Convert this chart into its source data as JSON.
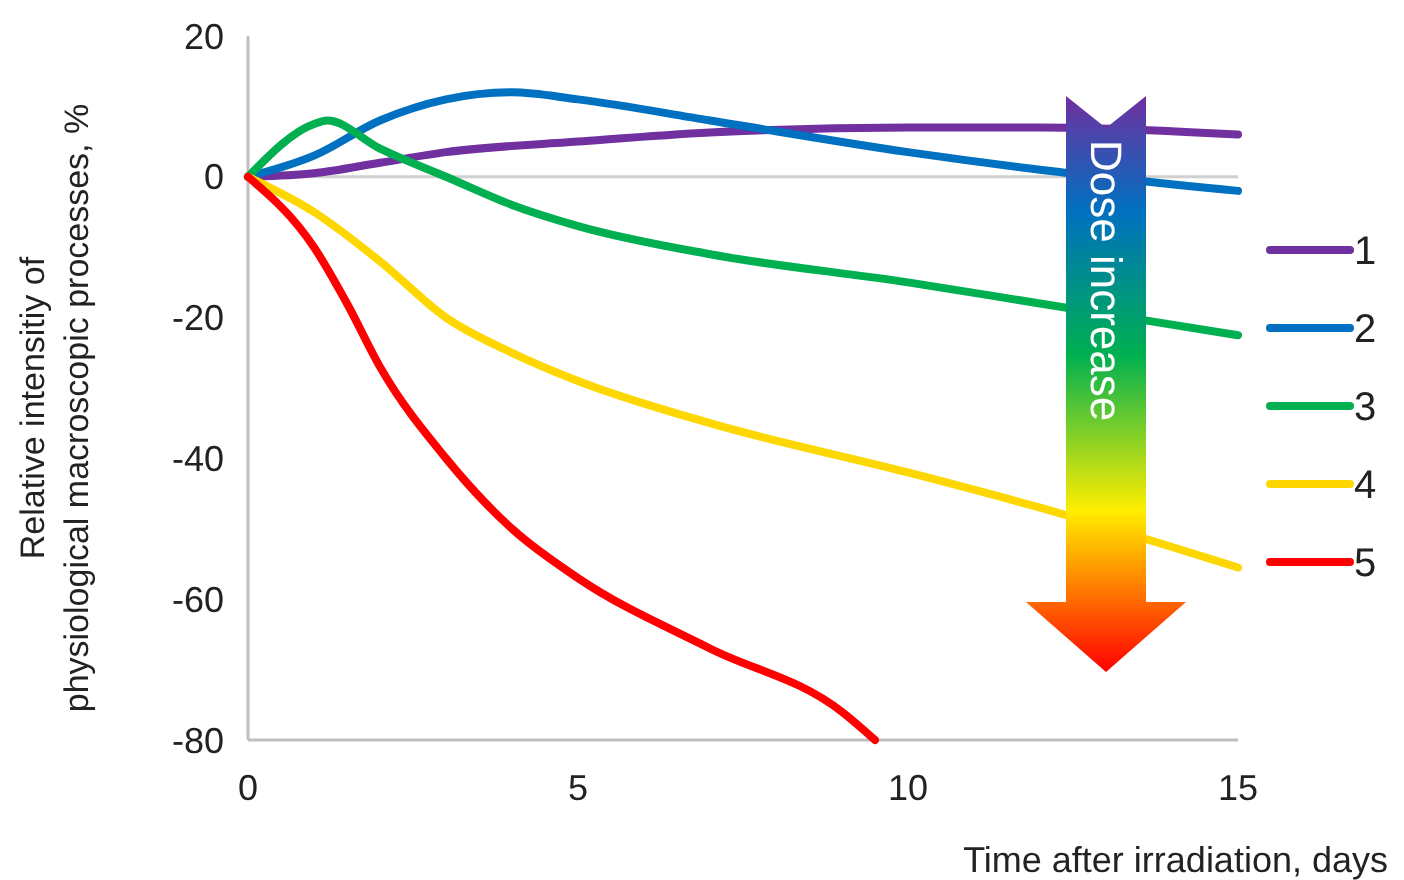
{
  "chart_data": {
    "type": "line",
    "xlabel": "Time after irradiation, days",
    "ylabel": "Relative intensitiy of physiological macroscopic processes, %",
    "xlim": [
      0,
      15
    ],
    "xticks": [
      0,
      5,
      10,
      15
    ],
    "ylim": [
      -80,
      20
    ],
    "yticks": [
      20,
      0,
      -20,
      -40,
      -60,
      -80
    ],
    "legend": "right",
    "grid": false,
    "marker": "none",
    "line_style": "solid",
    "ref_lines": [
      {
        "axis": "y",
        "value": 0,
        "color": "#d0d0d0"
      }
    ],
    "annotations": [
      "Dose increase"
    ],
    "series": [
      {
        "name": "1",
        "color": "#7030a0",
        "x": [
          0,
          1,
          2,
          3,
          5,
          7,
          10,
          12,
          15
        ],
        "values": [
          0,
          0.5,
          2,
          3.5,
          5,
          6.3,
          7,
          7,
          6
        ]
      },
      {
        "name": "2",
        "color": "#0070c0",
        "x": [
          0,
          1,
          2,
          3,
          4,
          5,
          7,
          10,
          12,
          15
        ],
        "values": [
          0,
          3,
          8,
          11,
          12,
          11,
          8,
          3.5,
          1,
          -2
        ]
      },
      {
        "name": "3",
        "color": "#00b050",
        "x": [
          0,
          1,
          1.2,
          2,
          3,
          4,
          5,
          7,
          10,
          12,
          15
        ],
        "values": [
          0,
          7.5,
          8,
          4,
          0,
          -4,
          -7,
          -11,
          -15,
          -18,
          -22.5
        ]
      },
      {
        "name": "4",
        "color": "#ffd700",
        "x": [
          0,
          1,
          2,
          3,
          4,
          5,
          7,
          10,
          12,
          15
        ],
        "values": [
          0,
          -5,
          -12,
          -20,
          -25,
          -29,
          -35,
          -42,
          -47,
          -55.5
        ]
      },
      {
        "name": "5",
        "color": "#ff0000",
        "x": [
          0,
          1,
          1.5,
          2,
          3,
          4,
          5,
          7,
          9,
          9.5
        ],
        "values": [
          0,
          -10,
          -18,
          -27,
          -40,
          -50,
          -57,
          -67,
          -76,
          -80
        ]
      }
    ]
  }
}
